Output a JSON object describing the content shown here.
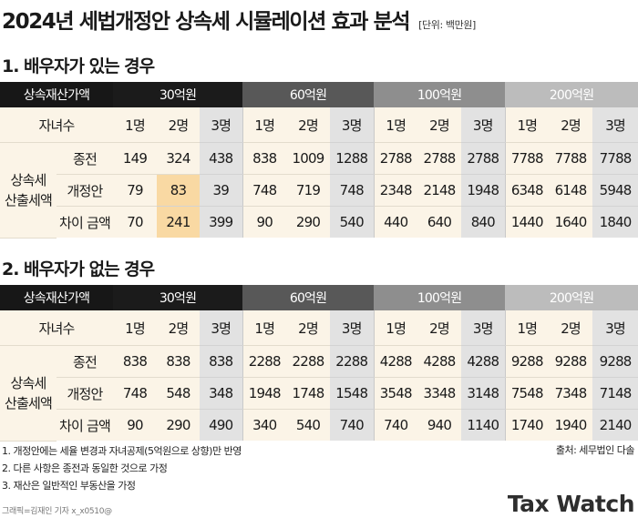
{
  "title": "2024년 세법개정안 상속세 시뮬레이션 효과 분석",
  "unit": "[단위: 백만원]",
  "sections": [
    {
      "heading": "1. 배우자가 있는 경우",
      "header_label": "상속재산가액",
      "assets": [
        "30억원",
        "60억원",
        "100억원",
        "200억원"
      ],
      "children_label": "자녀수",
      "children": [
        "1명",
        "2명",
        "3명",
        "1명",
        "2명",
        "3명",
        "1명",
        "2명",
        "3명",
        "1명",
        "2명",
        "3명"
      ],
      "group_label_1": "상속세",
      "group_label_2": "산출세액",
      "rows": [
        {
          "label": "종전",
          "values": [
            "149",
            "324",
            "438",
            "838",
            "1009",
            "1288",
            "2788",
            "2788",
            "2788",
            "7788",
            "7788",
            "7788"
          ]
        },
        {
          "label": "개정안",
          "values": [
            "79",
            "83",
            "39",
            "748",
            "719",
            "748",
            "2348",
            "2148",
            "1948",
            "6348",
            "6148",
            "5948"
          ]
        },
        {
          "label": "차이 금액",
          "values": [
            "70",
            "241",
            "399",
            "90",
            "290",
            "540",
            "440",
            "640",
            "840",
            "1440",
            "1640",
            "1840"
          ]
        }
      ]
    },
    {
      "heading": "2. 배우자가 없는 경우",
      "header_label": "상속재산가액",
      "assets": [
        "30억원",
        "60억원",
        "100억원",
        "200억원"
      ],
      "children_label": "자녀수",
      "children": [
        "1명",
        "2명",
        "3명",
        "1명",
        "2명",
        "3명",
        "1명",
        "2명",
        "3명",
        "1명",
        "2명",
        "3명"
      ],
      "group_label_1": "상속세",
      "group_label_2": "산출세액",
      "rows": [
        {
          "label": "종전",
          "values": [
            "838",
            "838",
            "838",
            "2288",
            "2288",
            "2288",
            "4288",
            "4288",
            "4288",
            "9288",
            "9288",
            "9288"
          ]
        },
        {
          "label": "개정안",
          "values": [
            "748",
            "548",
            "348",
            "1948",
            "1748",
            "1548",
            "3548",
            "3348",
            "3148",
            "7548",
            "7348",
            "7148"
          ]
        },
        {
          "label": "차이 금액",
          "values": [
            "90",
            "290",
            "490",
            "340",
            "540",
            "740",
            "740",
            "940",
            "1140",
            "1740",
            "1940",
            "2140"
          ]
        }
      ]
    }
  ],
  "notes": [
    "1. 개정안에는 세율 변경과 자녀공제(5억원으로 상향)만 반영",
    "2. 다른 사항은 종전과 동일한 것으로 가정",
    "3. 재산은 일반적인 부동산을 가정"
  ],
  "source": "출처: 세무법인 다솔",
  "credit": "그래픽=김재인 기자 x_x0510@",
  "logo": "Tax Watch",
  "colors": {
    "header_black": "#171717",
    "header_dark_grey": "#585858",
    "header_mid_grey": "#8e8e8e",
    "header_light_grey": "#bcbcbc",
    "cream": "#fbf4e7",
    "highlight_orange": "#f9d9a3",
    "cell_grey": "#e2e2e2"
  }
}
